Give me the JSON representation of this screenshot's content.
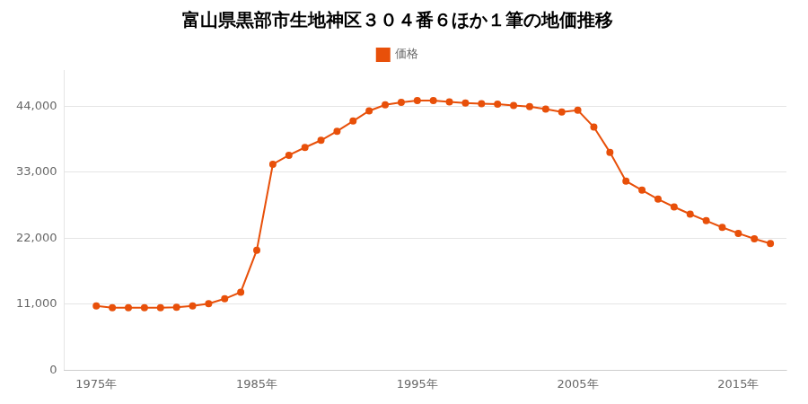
{
  "chart_data": {
    "type": "line",
    "title": "富山県黒部市生地神区３０４番６ほか１筆の地価推移",
    "x": [
      1975,
      1976,
      1977,
      1978,
      1979,
      1980,
      1981,
      1982,
      1983,
      1984,
      1985,
      1986,
      1987,
      1988,
      1989,
      1990,
      1991,
      1992,
      1993,
      1994,
      1995,
      1996,
      1997,
      1998,
      1999,
      2000,
      2001,
      2002,
      2003,
      2004,
      2005,
      2006,
      2007,
      2008,
      2009,
      2010,
      2011,
      2012,
      2013,
      2014,
      2015,
      2016,
      2017
    ],
    "series": [
      {
        "name": "価格",
        "color": "#E8500A",
        "marker": "circle",
        "values": [
          10700,
          10400,
          10400,
          10400,
          10400,
          10500,
          10700,
          11100,
          11900,
          13000,
          20000,
          34300,
          35800,
          37100,
          38300,
          39800,
          41500,
          43200,
          44200,
          44600,
          44900,
          44900,
          44700,
          44500,
          44400,
          44300,
          44100,
          43900,
          43500,
          43000,
          43300,
          40500,
          36300,
          31500,
          30000,
          28500,
          27200,
          26000,
          24900,
          23800,
          22800,
          21900,
          21100
        ]
      }
    ],
    "xlim": [
      1973,
      2018
    ],
    "xticks": [
      {
        "value": 1975,
        "label": "1975年"
      },
      {
        "value": 1985,
        "label": "1985年"
      },
      {
        "value": 1995,
        "label": "1995年"
      },
      {
        "value": 2005,
        "label": "2005年"
      },
      {
        "value": 2015,
        "label": "2015年"
      }
    ],
    "ylim": [
      0,
      50000
    ],
    "yticks": [
      0,
      {
        "value": 11000,
        "label": "11,000"
      },
      {
        "value": 22000,
        "label": "22,000"
      },
      {
        "value": 33000,
        "label": "33,000"
      },
      {
        "value": 44000,
        "label": "44,000"
      }
    ],
    "grid": "y",
    "legend": "top"
  }
}
